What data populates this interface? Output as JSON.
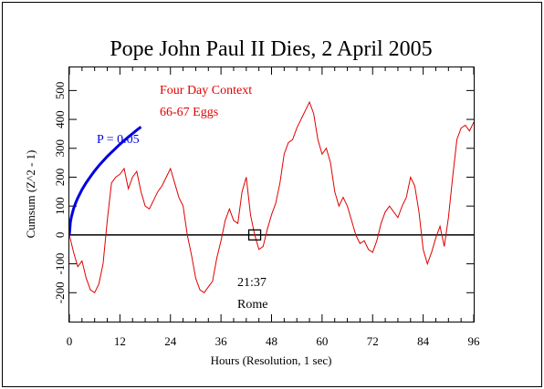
{
  "chart_data": {
    "type": "line",
    "title": "Pope John Paul II Dies, 2 April 2005",
    "xlabel": "Hours (Resolution, 1 sec)",
    "ylabel": "Cumsum (Z^2 - 1)",
    "xlim": [
      0,
      96
    ],
    "ylim": [
      -300,
      580
    ],
    "x_ticks": [
      0,
      12,
      24,
      36,
      48,
      60,
      72,
      84,
      96
    ],
    "y_ticks": [
      -200,
      -100,
      0,
      100,
      200,
      300,
      400,
      500
    ],
    "grid": false,
    "series": [
      {
        "color": "#e00000",
        "x": [
          0,
          1,
          2,
          3,
          4,
          5,
          6,
          7,
          8,
          9,
          10,
          11,
          12,
          13,
          14,
          15,
          16,
          17,
          18,
          19,
          20,
          21,
          22,
          23,
          24,
          25,
          26,
          27,
          28,
          29,
          30,
          31,
          32,
          33,
          34,
          35,
          36,
          37,
          38,
          39,
          40,
          41,
          42,
          43,
          44,
          45,
          46,
          47,
          48,
          49,
          50,
          51,
          52,
          53,
          54,
          55,
          56,
          57,
          58,
          59,
          60,
          61,
          62,
          63,
          64,
          65,
          66,
          67,
          68,
          69,
          70,
          71,
          72,
          73,
          74,
          75,
          76,
          77,
          78,
          79,
          80,
          81,
          82,
          83,
          84,
          85,
          86,
          87,
          88,
          89,
          90,
          91,
          92,
          93,
          94,
          95,
          96
        ],
        "y": [
          0,
          -60,
          -110,
          -90,
          -150,
          -190,
          -200,
          -170,
          -100,
          50,
          180,
          200,
          210,
          230,
          160,
          200,
          220,
          150,
          100,
          90,
          120,
          150,
          170,
          200,
          230,
          180,
          130,
          100,
          0,
          -70,
          -150,
          -190,
          -200,
          -180,
          -160,
          -80,
          -20,
          50,
          90,
          50,
          40,
          150,
          200,
          70,
          0,
          -50,
          -40,
          20,
          70,
          110,
          180,
          280,
          320,
          330,
          370,
          400,
          430,
          460,
          420,
          330,
          280,
          300,
          250,
          150,
          100,
          130,
          100,
          50,
          0,
          -30,
          -20,
          -50,
          -60,
          -20,
          40,
          80,
          100,
          80,
          60,
          100,
          130,
          200,
          170,
          80,
          -50,
          -100,
          -60,
          -10,
          30,
          -40,
          60,
          200,
          330,
          370,
          380,
          360,
          390
        ]
      },
      {
        "name": "P = 0.05",
        "color": "#0000e0",
        "x": [
          0,
          0.25,
          0.5,
          1,
          1.5,
          2,
          3,
          4,
          5,
          6,
          7,
          8,
          9,
          10,
          11,
          12,
          13,
          14,
          15,
          16,
          17
        ],
        "y": [
          0,
          45,
          64,
          91,
          111,
          128,
          157,
          181,
          202,
          222,
          240,
          256,
          272,
          286,
          300,
          314,
          327,
          339,
          351,
          363,
          374
        ]
      }
    ],
    "annotations": [
      {
        "text": "Four Day Context",
        "color": "#e00000"
      },
      {
        "text": "66-67 Eggs",
        "color": "#e00000"
      },
      {
        "text": "21:37",
        "color": "#000000"
      },
      {
        "text": "Rome",
        "color": "#000000"
      }
    ],
    "event_marker": {
      "x": 44,
      "y": 0
    },
    "reference_line_y": 0
  }
}
